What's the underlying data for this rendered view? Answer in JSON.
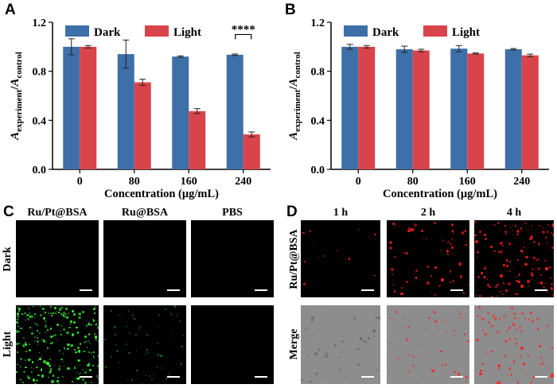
{
  "panels": {
    "A": "A",
    "B": "B",
    "C": "C",
    "D": "D"
  },
  "chart_data": [
    {
      "type": "bar",
      "panel": "A",
      "categories": [
        "0",
        "80",
        "160",
        "240"
      ],
      "series": [
        {
          "name": "Dark",
          "color": "#3d6fa8",
          "values": [
            1.0,
            0.94,
            0.92,
            0.935
          ],
          "errors": [
            0.065,
            0.115,
            0.006,
            0.006
          ]
        },
        {
          "name": "Light",
          "color": "#d9434a",
          "values": [
            1.0,
            0.71,
            0.475,
            0.285
          ],
          "errors": [
            0.01,
            0.025,
            0.02,
            0.02
          ]
        }
      ],
      "ylim": [
        0.0,
        1.2
      ],
      "yticks": [
        "0.0",
        "0.4",
        "0.8",
        "1.2"
      ],
      "xlabel": "Concentration (μg/mL)",
      "ylabel_main": "A",
      "ylabel_sub1": "experiment",
      "ylabel_sub2": "control",
      "annotation": "****"
    },
    {
      "type": "bar",
      "panel": "B",
      "categories": [
        "0",
        "80",
        "160",
        "240"
      ],
      "series": [
        {
          "name": "Dark",
          "color": "#3d6fa8",
          "values": [
            1.0,
            0.98,
            0.985,
            0.98
          ],
          "errors": [
            0.02,
            0.025,
            0.025,
            0.006
          ]
        },
        {
          "name": "Light",
          "color": "#d9434a",
          "values": [
            1.0,
            0.97,
            0.945,
            0.93
          ],
          "errors": [
            0.01,
            0.01,
            0.005,
            0.01
          ]
        }
      ],
      "ylim": [
        0.0,
        1.2
      ],
      "yticks": [
        "0.0",
        "0.4",
        "0.8",
        "1.2"
      ],
      "xlabel": "Concentration (μg/mL)",
      "ylabel_main": "A",
      "ylabel_sub1": "experiment",
      "ylabel_sub2": "control"
    }
  ],
  "panel_c": {
    "columns": [
      "Ru/Pt@BSA",
      "Ru@BSA",
      "PBS"
    ],
    "rows": [
      "Dark",
      "Light"
    ],
    "dot_color": "#3cff3c"
  },
  "panel_d": {
    "columns": [
      "1 h",
      "2 h",
      "4 h"
    ],
    "rows": [
      "Ru/Pt@BSA",
      "Merge"
    ],
    "dot_color": "#ff2020"
  }
}
